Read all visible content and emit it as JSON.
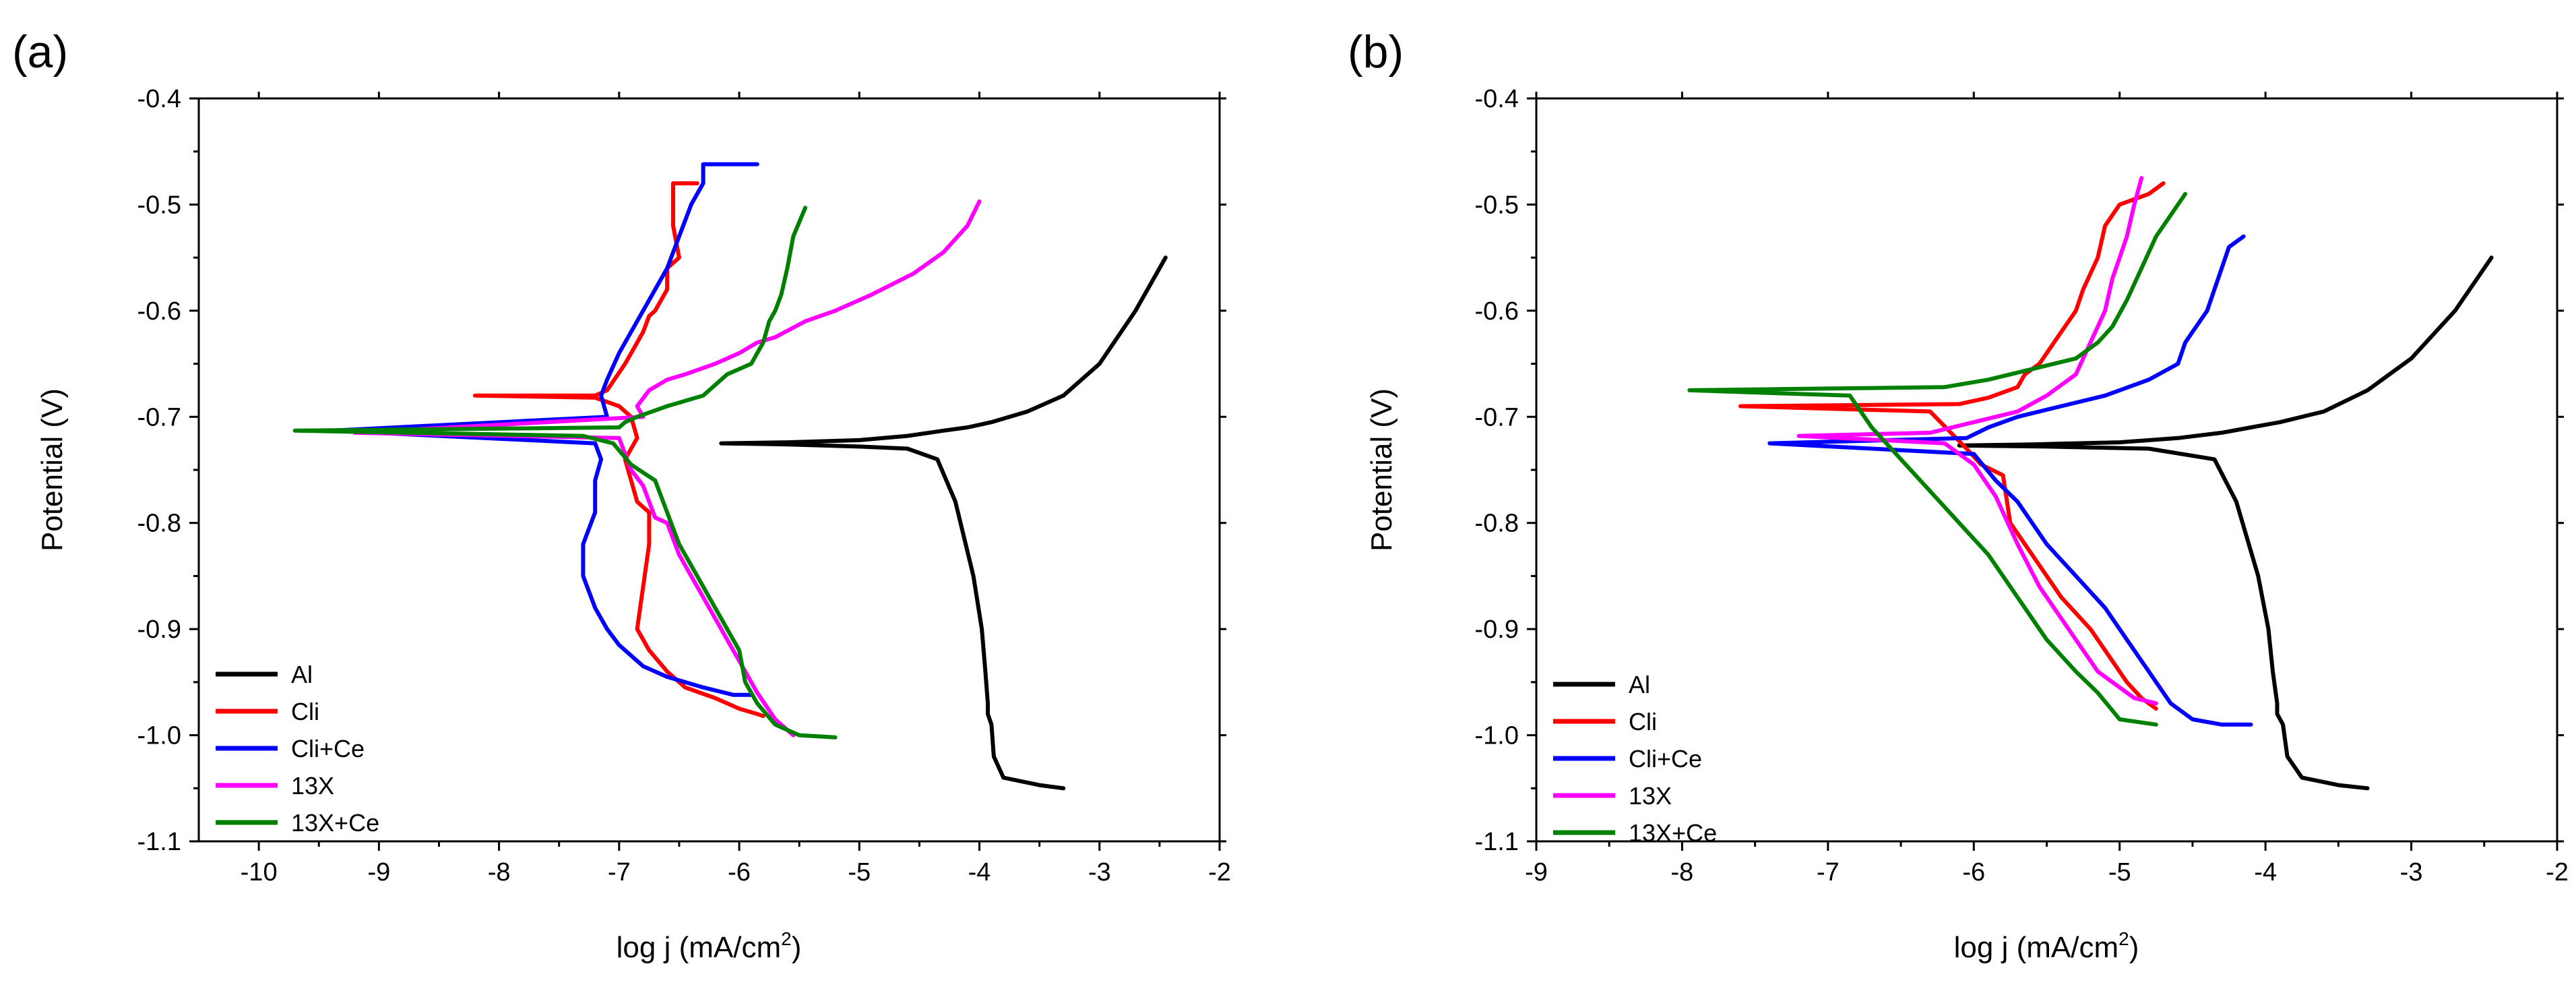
{
  "chart_data": [
    {
      "panel": "(a)",
      "type": "line",
      "xlabel": "log j (mA/cm",
      "xlabel_sup": "2",
      "xlabel_close": ")",
      "ylabel": "Potential (V)",
      "xlim": [
        -10.5,
        -2
      ],
      "ylim": [
        -1.1,
        -0.4
      ],
      "xticks": [
        -10,
        -9,
        -8,
        -7,
        -6,
        -5,
        -4,
        -3,
        -2
      ],
      "yticks": [
        -1.1,
        -1.0,
        -0.9,
        -0.8,
        -0.7,
        -0.6,
        -0.5,
        -0.4
      ],
      "xtick_labels": [
        "-10",
        "-9",
        "-8",
        "-7",
        "-6",
        "-5",
        "-4",
        "-3",
        "-2"
      ],
      "ytick_labels": [
        "-1.1",
        "-1.0",
        "-0.9",
        "-0.8",
        "-0.7",
        "-0.6",
        "-0.5",
        "-0.4"
      ],
      "legend_position": "bottom-left",
      "series": [
        {
          "name": "Al",
          "color": "#000000",
          "x": [
            -2.45,
            -2.7,
            -3.0,
            -3.3,
            -3.6,
            -3.9,
            -4.1,
            -4.3,
            -4.6,
            -5.0,
            -5.6,
            -6.15,
            -5.6,
            -5.0,
            -4.6,
            -4.35,
            -4.2,
            -4.05,
            -3.98,
            -3.95,
            -3.93,
            -3.93,
            -3.9,
            -3.88,
            -3.8,
            -3.5,
            -3.3
          ],
          "y": [
            -0.55,
            -0.6,
            -0.65,
            -0.68,
            -0.695,
            -0.705,
            -0.71,
            -0.713,
            -0.718,
            -0.722,
            -0.724,
            -0.725,
            -0.726,
            -0.728,
            -0.73,
            -0.74,
            -0.78,
            -0.85,
            -0.9,
            -0.94,
            -0.97,
            -0.98,
            -0.99,
            -1.02,
            -1.04,
            -1.047,
            -1.05
          ]
        },
        {
          "name": "Cli",
          "color": "#ff0000",
          "x": [
            -6.35,
            -6.55,
            -6.55,
            -6.5,
            -6.6,
            -6.6,
            -6.7,
            -6.75,
            -6.8,
            -6.85,
            -6.95,
            -7.1,
            -7.2,
            -8.2,
            -7.2,
            -7.0,
            -6.9,
            -6.85,
            -6.95,
            -6.9,
            -6.85,
            -6.75,
            -6.75,
            -6.85,
            -6.75,
            -6.6,
            -6.45,
            -6.2,
            -6.0,
            -5.85,
            -5.8
          ],
          "y": [
            -0.48,
            -0.48,
            -0.52,
            -0.55,
            -0.56,
            -0.58,
            -0.6,
            -0.605,
            -0.62,
            -0.63,
            -0.65,
            -0.675,
            -0.68,
            -0.68,
            -0.682,
            -0.69,
            -0.7,
            -0.72,
            -0.74,
            -0.76,
            -0.78,
            -0.79,
            -0.82,
            -0.9,
            -0.92,
            -0.94,
            -0.955,
            -0.965,
            -0.975,
            -0.98,
            -0.982
          ]
        },
        {
          "name": "Cli+Ce",
          "color": "#0000ff",
          "x": [
            -5.85,
            -6.3,
            -6.3,
            -6.4,
            -6.5,
            -6.6,
            -6.7,
            -6.75,
            -6.9,
            -7.0,
            -7.1,
            -7.15,
            -7.1,
            -9.4,
            -7.2,
            -7.15,
            -7.2,
            -7.2,
            -7.3,
            -7.3,
            -7.2,
            -7.1,
            -7.0,
            -6.8,
            -6.6,
            -6.3,
            -6.05,
            -5.9
          ],
          "y": [
            -0.462,
            -0.462,
            -0.48,
            -0.5,
            -0.53,
            -0.56,
            -0.58,
            -0.59,
            -0.62,
            -0.64,
            -0.665,
            -0.68,
            -0.7,
            -0.713,
            -0.725,
            -0.74,
            -0.76,
            -0.79,
            -0.82,
            -0.85,
            -0.88,
            -0.9,
            -0.915,
            -0.935,
            -0.945,
            -0.955,
            -0.962,
            -0.962
          ]
        },
        {
          "name": "13X",
          "color": "#ff00ff",
          "x": [
            -4.0,
            -4.1,
            -4.3,
            -4.55,
            -4.9,
            -5.2,
            -5.45,
            -5.7,
            -5.85,
            -6.0,
            -6.2,
            -6.45,
            -6.6,
            -6.75,
            -6.85,
            -6.8,
            -9.2,
            -7.0,
            -6.95,
            -6.9,
            -6.8,
            -6.75,
            -6.7,
            -6.6,
            -6.5,
            -6.35,
            -6.2,
            -6.05,
            -5.95,
            -5.85,
            -5.7,
            -5.55
          ],
          "y": [
            -0.497,
            -0.52,
            -0.545,
            -0.565,
            -0.585,
            -0.6,
            -0.61,
            -0.625,
            -0.63,
            -0.64,
            -0.65,
            -0.66,
            -0.665,
            -0.675,
            -0.69,
            -0.7,
            -0.715,
            -0.72,
            -0.735,
            -0.75,
            -0.765,
            -0.78,
            -0.795,
            -0.8,
            -0.83,
            -0.86,
            -0.89,
            -0.92,
            -0.94,
            -0.96,
            -0.985,
            -1.0
          ]
        },
        {
          "name": "13X+Ce",
          "color": "#008000",
          "x": [
            -5.45,
            -5.55,
            -5.6,
            -5.65,
            -5.7,
            -5.75,
            -5.8,
            -5.85,
            -5.9,
            -6.1,
            -6.3,
            -6.6,
            -6.85,
            -6.95,
            -7.0,
            -9.7,
            -7.3,
            -7.05,
            -6.9,
            -6.7,
            -6.6,
            -6.5,
            -6.35,
            -6.2,
            -6.1,
            -6.0,
            -5.95,
            -5.85,
            -5.7,
            -5.5,
            -5.2
          ],
          "y": [
            -0.503,
            -0.53,
            -0.56,
            -0.585,
            -0.6,
            -0.61,
            -0.63,
            -0.64,
            -0.65,
            -0.66,
            -0.68,
            -0.69,
            -0.7,
            -0.705,
            -0.71,
            -0.713,
            -0.718,
            -0.725,
            -0.745,
            -0.76,
            -0.79,
            -0.82,
            -0.85,
            -0.88,
            -0.9,
            -0.92,
            -0.95,
            -0.97,
            -0.99,
            -1.0,
            -1.002
          ]
        }
      ]
    },
    {
      "panel": "(b)",
      "type": "line",
      "xlabel": "log j (mA/cm",
      "xlabel_sup": "2",
      "xlabel_close": ")",
      "ylabel": "Potential (V)",
      "xlim": [
        -9,
        -2
      ],
      "ylim": [
        -1.1,
        -0.4
      ],
      "xticks": [
        -9,
        -8,
        -7,
        -6,
        -5,
        -4,
        -3,
        -2
      ],
      "yticks": [
        -1.1,
        -1.0,
        -0.9,
        -0.8,
        -0.7,
        -0.6,
        -0.5,
        -0.4
      ],
      "xtick_labels": [
        "-9",
        "-8",
        "-7",
        "-6",
        "-5",
        "-4",
        "-3",
        "-2"
      ],
      "ytick_labels": [
        "-1.1",
        "-1.0",
        "-0.9",
        "-0.8",
        "-0.7",
        "-0.6",
        "-0.5",
        "-0.4"
      ],
      "legend_position": "bottom-left",
      "series": [
        {
          "name": "Al",
          "color": "#000000",
          "x": [
            -2.45,
            -2.7,
            -3.0,
            -3.3,
            -3.6,
            -3.9,
            -4.1,
            -4.3,
            -4.6,
            -5.0,
            -5.6,
            -6.1,
            -5.5,
            -4.8,
            -4.35,
            -4.2,
            -4.05,
            -3.98,
            -3.95,
            -3.92,
            -3.92,
            -3.88,
            -3.85,
            -3.75,
            -3.5,
            -3.3
          ],
          "y": [
            -0.55,
            -0.6,
            -0.645,
            -0.675,
            -0.695,
            -0.705,
            -0.71,
            -0.715,
            -0.72,
            -0.724,
            -0.726,
            -0.727,
            -0.728,
            -0.73,
            -0.74,
            -0.78,
            -0.85,
            -0.9,
            -0.94,
            -0.97,
            -0.98,
            -0.99,
            -1.02,
            -1.04,
            -1.047,
            -1.05
          ]
        },
        {
          "name": "Cli",
          "color": "#ff0000",
          "x": [
            -4.7,
            -4.8,
            -5.0,
            -5.1,
            -5.15,
            -5.25,
            -5.3,
            -5.4,
            -5.5,
            -5.55,
            -5.65,
            -5.7,
            -5.9,
            -6.1,
            -7.6,
            -6.3,
            -6.05,
            -5.95,
            -5.8,
            -5.75,
            -5.6,
            -5.4,
            -5.2,
            -5.05,
            -4.95,
            -4.85,
            -4.75
          ],
          "y": [
            -0.48,
            -0.49,
            -0.5,
            -0.52,
            -0.55,
            -0.58,
            -0.6,
            -0.62,
            -0.64,
            -0.65,
            -0.66,
            -0.672,
            -0.682,
            -0.688,
            -0.69,
            -0.695,
            -0.73,
            -0.745,
            -0.755,
            -0.8,
            -0.83,
            -0.87,
            -0.9,
            -0.93,
            -0.95,
            -0.965,
            -0.975
          ]
        },
        {
          "name": "Cli+Ce",
          "color": "#0000ff",
          "x": [
            -4.15,
            -4.25,
            -4.3,
            -4.4,
            -4.5,
            -4.55,
            -4.6,
            -4.8,
            -5.1,
            -5.4,
            -5.7,
            -5.9,
            -6.05,
            -7.4,
            -6.0,
            -5.85,
            -5.7,
            -5.5,
            -5.3,
            -5.1,
            -4.95,
            -4.8,
            -4.65,
            -4.5,
            -4.3,
            -4.1
          ],
          "y": [
            -0.53,
            -0.54,
            -0.56,
            -0.6,
            -0.62,
            -0.63,
            -0.65,
            -0.665,
            -0.68,
            -0.69,
            -0.7,
            -0.71,
            -0.72,
            -0.725,
            -0.735,
            -0.76,
            -0.78,
            -0.82,
            -0.85,
            -0.88,
            -0.91,
            -0.94,
            -0.97,
            -0.985,
            -0.99,
            -0.99
          ]
        },
        {
          "name": "13X",
          "color": "#ff00ff",
          "x": [
            -4.85,
            -4.9,
            -4.95,
            -5.05,
            -5.1,
            -5.2,
            -5.3,
            -5.5,
            -5.7,
            -6.0,
            -6.3,
            -7.2,
            -6.2,
            -6.0,
            -5.85,
            -5.7,
            -5.55,
            -5.45,
            -5.3,
            -5.15,
            -5.0,
            -4.9,
            -4.75
          ],
          "y": [
            -0.475,
            -0.5,
            -0.53,
            -0.57,
            -0.6,
            -0.63,
            -0.66,
            -0.68,
            -0.695,
            -0.705,
            -0.715,
            -0.718,
            -0.725,
            -0.745,
            -0.775,
            -0.82,
            -0.86,
            -0.88,
            -0.91,
            -0.94,
            -0.955,
            -0.965,
            -0.97
          ]
        },
        {
          "name": "13X+Ce",
          "color": "#008000",
          "x": [
            -4.55,
            -4.65,
            -4.75,
            -4.85,
            -4.95,
            -5.05,
            -5.15,
            -5.3,
            -5.6,
            -5.9,
            -6.2,
            -7.95,
            -6.85,
            -6.7,
            -6.5,
            -6.3,
            -6.1,
            -5.9,
            -5.7,
            -5.5,
            -5.3,
            -5.15,
            -5.0,
            -4.75
          ],
          "y": [
            -0.49,
            -0.51,
            -0.53,
            -0.56,
            -0.59,
            -0.615,
            -0.63,
            -0.645,
            -0.655,
            -0.665,
            -0.672,
            -0.675,
            -0.68,
            -0.71,
            -0.74,
            -0.77,
            -0.8,
            -0.83,
            -0.87,
            -0.91,
            -0.94,
            -0.96,
            -0.985,
            -0.99
          ]
        }
      ]
    }
  ]
}
